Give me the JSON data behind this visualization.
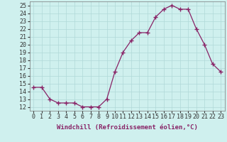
{
  "x": [
    0,
    1,
    2,
    3,
    4,
    5,
    6,
    7,
    8,
    9,
    10,
    11,
    12,
    13,
    14,
    15,
    16,
    17,
    18,
    19,
    20,
    21,
    22,
    23
  ],
  "y": [
    14.5,
    14.5,
    13.0,
    12.5,
    12.5,
    12.5,
    12.0,
    12.0,
    12.0,
    13.0,
    16.5,
    19.0,
    20.5,
    21.5,
    21.5,
    23.5,
    24.5,
    25.0,
    24.5,
    24.5,
    22.0,
    20.0,
    17.5,
    16.5
  ],
  "line_color": "#882266",
  "marker": "+",
  "marker_size": 4,
  "xlabel": "Windchill (Refroidissement éolien,°C)",
  "xlabel_fontsize": 6.5,
  "ylabel_ticks": [
    12,
    13,
    14,
    15,
    16,
    17,
    18,
    19,
    20,
    21,
    22,
    23,
    24,
    25
  ],
  "xlim": [
    -0.5,
    23.5
  ],
  "ylim": [
    11.5,
    25.5
  ],
  "bg_color": "#cff0ee",
  "grid_color": "#b0d8d8",
  "tick_fontsize": 6.0
}
